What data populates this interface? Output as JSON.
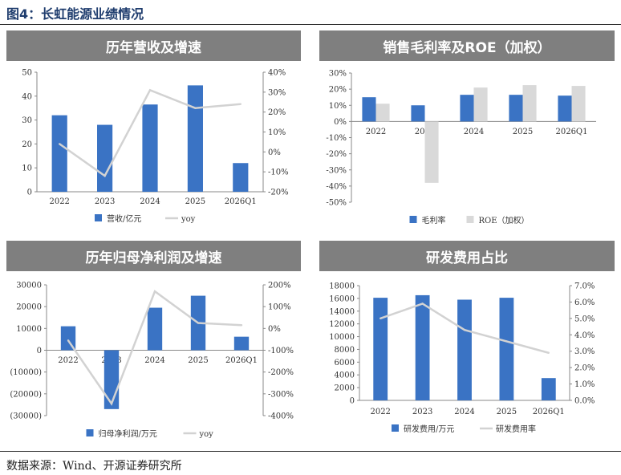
{
  "figure": {
    "title": "图4：长虹能源业绩情况",
    "source": "数据来源：Wind、开源证券研究所"
  },
  "colors": {
    "bar": "#3a73c4",
    "line": "#d2d2d2",
    "roe": "#d9d9d9",
    "negative_tick": "#c00000",
    "header_bg": "#7f7f7f"
  },
  "chart_data": [
    {
      "type": "bar",
      "title": "历年营收及增速",
      "categories": [
        "2022",
        "2023",
        "2024",
        "2025",
        "2026Q1"
      ],
      "series": [
        {
          "name": "营收/亿元",
          "type": "bar",
          "axis": "left",
          "values": [
            32,
            28,
            36.5,
            44.5,
            12
          ]
        },
        {
          "name": "yoy",
          "type": "line",
          "axis": "right",
          "values": [
            0.04,
            -0.12,
            0.31,
            0.22,
            0.24
          ]
        }
      ],
      "y_left": {
        "min": 0,
        "max": 50,
        "ticks": [
          0,
          10,
          20,
          30,
          40,
          50
        ],
        "labels": [
          "0",
          "10",
          "20",
          "30",
          "40",
          "50"
        ]
      },
      "y_right": {
        "min": -0.2,
        "max": 0.4,
        "ticks": [
          -0.2,
          -0.1,
          0,
          0.1,
          0.2,
          0.3,
          0.4
        ],
        "labels": [
          "-20%",
          "-10%",
          "0%",
          "10%",
          "20%",
          "30%",
          "40%"
        ]
      }
    },
    {
      "type": "bar",
      "title": "销售毛利率及ROE（加权）",
      "categories": [
        "2022",
        "2023",
        "2024",
        "2025",
        "2026Q1"
      ],
      "series": [
        {
          "name": "毛利率",
          "type": "bar",
          "axis": "left",
          "values": [
            0.15,
            0.1,
            0.165,
            0.165,
            0.16
          ]
        },
        {
          "name": "ROE（加权）",
          "type": "bar",
          "axis": "left",
          "values": [
            0.11,
            -0.38,
            0.21,
            0.225,
            0.22
          ]
        }
      ],
      "y_left": {
        "min": -0.5,
        "max": 0.3,
        "ticks": [
          -0.5,
          -0.4,
          -0.3,
          -0.2,
          -0.1,
          0,
          0.1,
          0.2,
          0.3
        ],
        "labels": [
          "-50%",
          "-40%",
          "-30%",
          "-20%",
          "-10%",
          "0%",
          "10%",
          "20%",
          "30%"
        ]
      }
    },
    {
      "type": "bar",
      "title": "历年归母净利润及增速",
      "categories": [
        "2022",
        "2023",
        "2024",
        "2025",
        "2026Q1"
      ],
      "series": [
        {
          "name": "归母净利润/万元",
          "type": "bar",
          "axis": "left",
          "values": [
            11000,
            -27000,
            19500,
            25000,
            6200
          ]
        },
        {
          "name": "yoy",
          "type": "line",
          "axis": "right",
          "values": [
            -0.55,
            -3.45,
            1.7,
            0.25,
            0.15
          ]
        }
      ],
      "y_left": {
        "min": -30000,
        "max": 30000,
        "ticks": [
          -30000,
          -20000,
          -10000,
          0,
          10000,
          20000,
          30000
        ],
        "labels": [
          "(30000)",
          "(20000)",
          "(10000)",
          "0",
          "10000",
          "20000",
          "30000"
        ]
      },
      "y_right": {
        "min": -4,
        "max": 2,
        "ticks": [
          -4,
          -3,
          -2,
          -1,
          0,
          1,
          2
        ],
        "labels": [
          "-400%",
          "-300%",
          "-200%",
          "-100%",
          "0%",
          "100%",
          "200%"
        ]
      }
    },
    {
      "type": "bar",
      "title": "研发费用占比",
      "categories": [
        "2022",
        "2023",
        "2024",
        "2025",
        "2026Q1"
      ],
      "series": [
        {
          "name": "研发费用/万元",
          "type": "bar",
          "axis": "left",
          "values": [
            16100,
            16500,
            15800,
            16100,
            3500
          ]
        },
        {
          "name": "研发费用率",
          "type": "line",
          "axis": "right",
          "values": [
            0.05,
            0.059,
            0.043,
            0.036,
            0.029
          ]
        }
      ],
      "y_left": {
        "min": 0,
        "max": 18000,
        "ticks": [
          0,
          2000,
          4000,
          6000,
          8000,
          10000,
          12000,
          14000,
          16000,
          18000
        ],
        "labels": [
          "0",
          "2000",
          "4000",
          "6000",
          "8000",
          "10000",
          "12000",
          "14000",
          "16000",
          "18000"
        ]
      },
      "y_right": {
        "min": 0,
        "max": 0.07,
        "ticks": [
          0,
          0.01,
          0.02,
          0.03,
          0.04,
          0.05,
          0.06,
          0.07
        ],
        "labels": [
          "0.0%",
          "1.0%",
          "2.0%",
          "3.0%",
          "4.0%",
          "5.0%",
          "6.0%",
          "7.0%"
        ]
      }
    }
  ]
}
